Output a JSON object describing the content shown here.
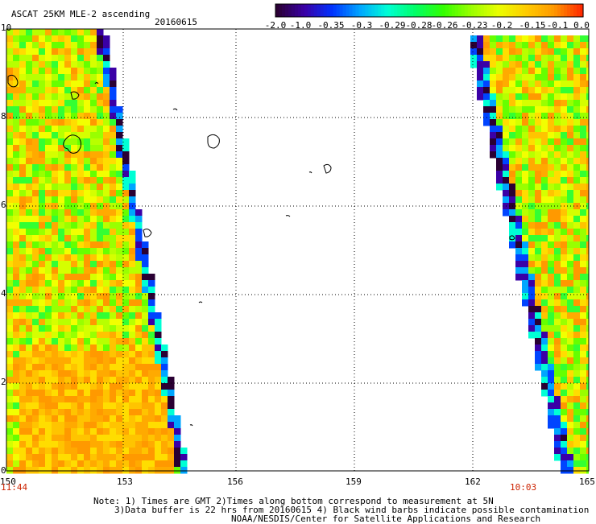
{
  "header": {
    "title": "ASCAT 25KM MLE-2 ascending",
    "date": "20160615"
  },
  "colorbar": {
    "labels": [
      "-2.0",
      "-1.0",
      "-0.35",
      "-0.3",
      "-0.29",
      "-0.28",
      "-0.26",
      "-0.23",
      "-0.2",
      "-0.15",
      "-0.1",
      "0.0"
    ],
    "colors": [
      "#2a0033",
      "#3a00a6",
      "#0033ff",
      "#00a6ff",
      "#00ffd5",
      "#00ff66",
      "#33ff00",
      "#99ff00",
      "#eaff00",
      "#ffcc00",
      "#ff9900",
      "#ff2a00"
    ]
  },
  "axes": {
    "y_labels": [
      "10",
      "8",
      "6",
      "4",
      "2",
      "0"
    ],
    "x_labels": [
      "150",
      "153",
      "156",
      "159",
      "162",
      "165"
    ],
    "left_time": "11:44",
    "right_time": "10:03"
  },
  "notes": [
    "Note: 1) Times are GMT 2)Times along bottom correspond to measurement at 5N",
    "3)Data buffer is 22 hrs from 20160615 4) Black wind barbs indicate possible contamination",
    "NOAA/NESDIS/Center for Satellite Applications and Research"
  ]
}
